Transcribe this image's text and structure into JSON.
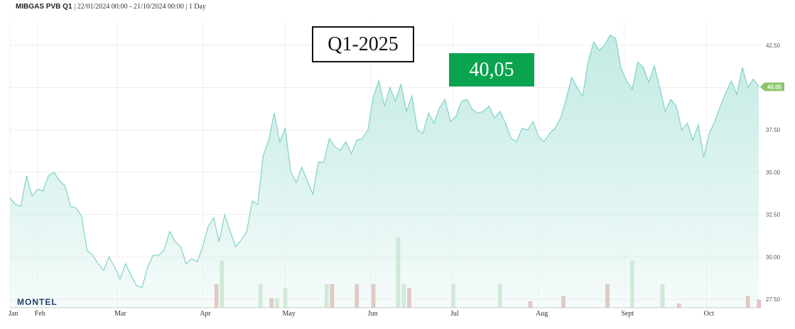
{
  "header": {
    "title": "MIBGAS PVB Q1",
    "range": "| 22/01/2024 00:00 - 21/10/2024 00:00 | 1 Day"
  },
  "annotations": {
    "contract_label": "Q1-2025",
    "price_label": "40,05",
    "price_color": "#0aa34f"
  },
  "logo": "MONTEL",
  "chart_data": {
    "type": "area",
    "title": "MIBGAS PVB Q1",
    "xlabel": "",
    "ylabel": "",
    "ylim": [
      27.0,
      44.0
    ],
    "y_ticks": [
      "27.50",
      "30.00",
      "32.50",
      "35.00",
      "37.50",
      "40.00",
      "42.50"
    ],
    "y_tick_values": [
      27.5,
      30.0,
      32.5,
      35.0,
      37.5,
      40.0,
      42.5
    ],
    "x_ticks": [
      {
        "label": "Jan",
        "date": "2024-01-22"
      },
      {
        "label": "Feb",
        "date": "2024-02-01"
      },
      {
        "label": "Mar",
        "date": "2024-03-01"
      },
      {
        "label": "Apr",
        "date": "2024-04-01"
      },
      {
        "label": "May",
        "date": "2024-05-01"
      },
      {
        "label": "Jun",
        "date": "2024-06-01"
      },
      {
        "label": "Jul",
        "date": "2024-07-01"
      },
      {
        "label": "Aug",
        "date": "2024-08-01"
      },
      {
        "label": "Sept",
        "date": "2024-09-01"
      },
      {
        "label": "Oct",
        "date": "2024-10-01"
      }
    ],
    "last_value_label": "40.05",
    "line_color": "#7fd3c6",
    "fill_color": "#bfe9e2",
    "grid": true,
    "series": [
      {
        "values": [
          [
            "2024-01-22",
            33.5
          ],
          [
            "2024-01-24",
            33.1
          ],
          [
            "2024-01-26",
            33.0
          ],
          [
            "2024-01-28",
            34.8
          ],
          [
            "2024-01-30",
            33.6
          ],
          [
            "2024-02-01",
            34.0
          ],
          [
            "2024-02-03",
            33.9
          ],
          [
            "2024-02-05",
            34.8
          ],
          [
            "2024-02-07",
            35.0
          ],
          [
            "2024-02-09",
            34.5
          ],
          [
            "2024-02-11",
            34.2
          ],
          [
            "2024-02-13",
            33.0
          ],
          [
            "2024-02-15",
            32.9
          ],
          [
            "2024-02-17",
            32.4
          ],
          [
            "2024-02-19",
            30.4
          ],
          [
            "2024-02-21",
            30.1
          ],
          [
            "2024-02-23",
            29.6
          ],
          [
            "2024-02-25",
            29.2
          ],
          [
            "2024-02-27",
            30.0
          ],
          [
            "2024-02-29",
            29.4
          ],
          [
            "2024-03-02",
            28.7
          ],
          [
            "2024-03-04",
            29.6
          ],
          [
            "2024-03-06",
            28.9
          ],
          [
            "2024-03-08",
            28.3
          ],
          [
            "2024-03-10",
            28.2
          ],
          [
            "2024-03-12",
            29.4
          ],
          [
            "2024-03-14",
            30.1
          ],
          [
            "2024-03-16",
            30.1
          ],
          [
            "2024-03-18",
            30.4
          ],
          [
            "2024-03-20",
            31.5
          ],
          [
            "2024-03-22",
            30.9
          ],
          [
            "2024-03-24",
            30.6
          ],
          [
            "2024-03-26",
            29.6
          ],
          [
            "2024-03-28",
            29.9
          ],
          [
            "2024-03-30",
            29.7
          ],
          [
            "2024-04-01",
            30.6
          ],
          [
            "2024-04-03",
            31.8
          ],
          [
            "2024-04-05",
            32.3
          ],
          [
            "2024-04-07",
            30.9
          ],
          [
            "2024-04-09",
            32.5
          ],
          [
            "2024-04-11",
            31.5
          ],
          [
            "2024-04-13",
            30.6
          ],
          [
            "2024-04-15",
            31.0
          ],
          [
            "2024-04-17",
            31.5
          ],
          [
            "2024-04-19",
            33.3
          ],
          [
            "2024-04-21",
            33.1
          ],
          [
            "2024-04-23",
            36.0
          ],
          [
            "2024-04-25",
            36.9
          ],
          [
            "2024-04-27",
            38.5
          ],
          [
            "2024-04-29",
            36.8
          ],
          [
            "2024-05-01",
            37.6
          ],
          [
            "2024-05-03",
            35.0
          ],
          [
            "2024-05-05",
            34.4
          ],
          [
            "2024-05-07",
            35.3
          ],
          [
            "2024-05-09",
            34.5
          ],
          [
            "2024-05-11",
            33.7
          ],
          [
            "2024-05-13",
            35.6
          ],
          [
            "2024-05-15",
            35.6
          ],
          [
            "2024-05-17",
            37.0
          ],
          [
            "2024-05-19",
            36.5
          ],
          [
            "2024-05-21",
            36.3
          ],
          [
            "2024-05-23",
            36.8
          ],
          [
            "2024-05-25",
            36.1
          ],
          [
            "2024-05-27",
            36.9
          ],
          [
            "2024-05-29",
            37.0
          ],
          [
            "2024-05-31",
            37.5
          ],
          [
            "2024-06-02",
            39.5
          ],
          [
            "2024-06-04",
            40.4
          ],
          [
            "2024-06-06",
            38.9
          ],
          [
            "2024-06-08",
            40.0
          ],
          [
            "2024-06-10",
            39.2
          ],
          [
            "2024-06-12",
            40.2
          ],
          [
            "2024-06-14",
            38.6
          ],
          [
            "2024-06-16",
            39.5
          ],
          [
            "2024-06-18",
            37.5
          ],
          [
            "2024-06-20",
            37.3
          ],
          [
            "2024-06-22",
            38.5
          ],
          [
            "2024-06-24",
            37.9
          ],
          [
            "2024-06-26",
            38.8
          ],
          [
            "2024-06-28",
            39.3
          ],
          [
            "2024-06-30",
            38.0
          ],
          [
            "2024-07-02",
            38.3
          ],
          [
            "2024-07-04",
            39.2
          ],
          [
            "2024-07-06",
            39.3
          ],
          [
            "2024-07-08",
            38.7
          ],
          [
            "2024-07-10",
            38.5
          ],
          [
            "2024-07-12",
            38.6
          ],
          [
            "2024-07-14",
            38.9
          ],
          [
            "2024-07-16",
            38.2
          ],
          [
            "2024-07-18",
            38.6
          ],
          [
            "2024-07-20",
            37.9
          ],
          [
            "2024-07-22",
            37.0
          ],
          [
            "2024-07-24",
            36.8
          ],
          [
            "2024-07-26",
            37.6
          ],
          [
            "2024-07-28",
            37.5
          ],
          [
            "2024-07-30",
            38.0
          ],
          [
            "2024-08-01",
            37.1
          ],
          [
            "2024-08-03",
            36.8
          ],
          [
            "2024-08-05",
            37.3
          ],
          [
            "2024-08-07",
            37.6
          ],
          [
            "2024-08-09",
            38.2
          ],
          [
            "2024-08-11",
            39.3
          ],
          [
            "2024-08-13",
            40.6
          ],
          [
            "2024-08-15",
            40.0
          ],
          [
            "2024-08-17",
            39.5
          ],
          [
            "2024-08-19",
            41.5
          ],
          [
            "2024-08-21",
            42.7
          ],
          [
            "2024-08-23",
            42.2
          ],
          [
            "2024-08-25",
            42.5
          ],
          [
            "2024-08-27",
            43.1
          ],
          [
            "2024-08-29",
            42.9
          ],
          [
            "2024-08-31",
            41.1
          ],
          [
            "2024-09-02",
            40.4
          ],
          [
            "2024-09-04",
            39.9
          ],
          [
            "2024-09-06",
            41.5
          ],
          [
            "2024-09-08",
            41.2
          ],
          [
            "2024-09-10",
            40.3
          ],
          [
            "2024-09-12",
            41.3
          ],
          [
            "2024-09-14",
            40.0
          ],
          [
            "2024-09-16",
            38.6
          ],
          [
            "2024-09-18",
            39.3
          ],
          [
            "2024-09-20",
            38.9
          ],
          [
            "2024-09-22",
            37.5
          ],
          [
            "2024-09-24",
            37.9
          ],
          [
            "2024-09-26",
            36.9
          ],
          [
            "2024-09-28",
            37.8
          ],
          [
            "2024-09-30",
            35.9
          ],
          [
            "2024-10-02",
            37.3
          ],
          [
            "2024-10-04",
            38.0
          ],
          [
            "2024-10-06",
            38.9
          ],
          [
            "2024-10-08",
            39.7
          ],
          [
            "2024-10-10",
            40.4
          ],
          [
            "2024-10-12",
            39.6
          ],
          [
            "2024-10-14",
            41.2
          ],
          [
            "2024-10-16",
            40.0
          ],
          [
            "2024-10-18",
            40.5
          ],
          [
            "2024-10-20",
            40.05
          ]
        ]
      }
    ],
    "volume_series": {
      "green_color": "#d6ead6",
      "red_color": "#e8c4be",
      "bars": [
        {
          "date": "2024-04-06",
          "color": "red",
          "value": 3
        },
        {
          "date": "2024-04-08",
          "color": "green",
          "value": 6
        },
        {
          "date": "2024-04-22",
          "color": "green",
          "value": 3
        },
        {
          "date": "2024-04-26",
          "color": "red",
          "value": 1.2
        },
        {
          "date": "2024-04-28",
          "color": "green",
          "value": 1.2
        },
        {
          "date": "2024-05-01",
          "color": "green",
          "value": 2.5
        },
        {
          "date": "2024-05-16",
          "color": "green",
          "value": 3
        },
        {
          "date": "2024-05-18",
          "color": "red",
          "value": 3
        },
        {
          "date": "2024-05-27",
          "color": "red",
          "value": 3
        },
        {
          "date": "2024-06-02",
          "color": "red",
          "value": 3
        },
        {
          "date": "2024-06-11",
          "color": "green",
          "value": 9
        },
        {
          "date": "2024-06-13",
          "color": "green",
          "value": 3
        },
        {
          "date": "2024-06-15",
          "color": "red",
          "value": 2.5
        },
        {
          "date": "2024-07-01",
          "color": "green",
          "value": 3
        },
        {
          "date": "2024-07-18",
          "color": "green",
          "value": 3
        },
        {
          "date": "2024-07-29",
          "color": "red",
          "value": 0.8
        },
        {
          "date": "2024-08-10",
          "color": "red",
          "value": 1.5
        },
        {
          "date": "2024-08-26",
          "color": "red",
          "value": 3
        },
        {
          "date": "2024-09-04",
          "color": "green",
          "value": 6
        },
        {
          "date": "2024-09-15",
          "color": "green",
          "value": 3
        },
        {
          "date": "2024-09-21",
          "color": "red",
          "value": 0.5
        },
        {
          "date": "2024-10-16",
          "color": "red",
          "value": 1.5
        },
        {
          "date": "2024-10-20",
          "color": "red",
          "value": 1
        }
      ]
    }
  }
}
